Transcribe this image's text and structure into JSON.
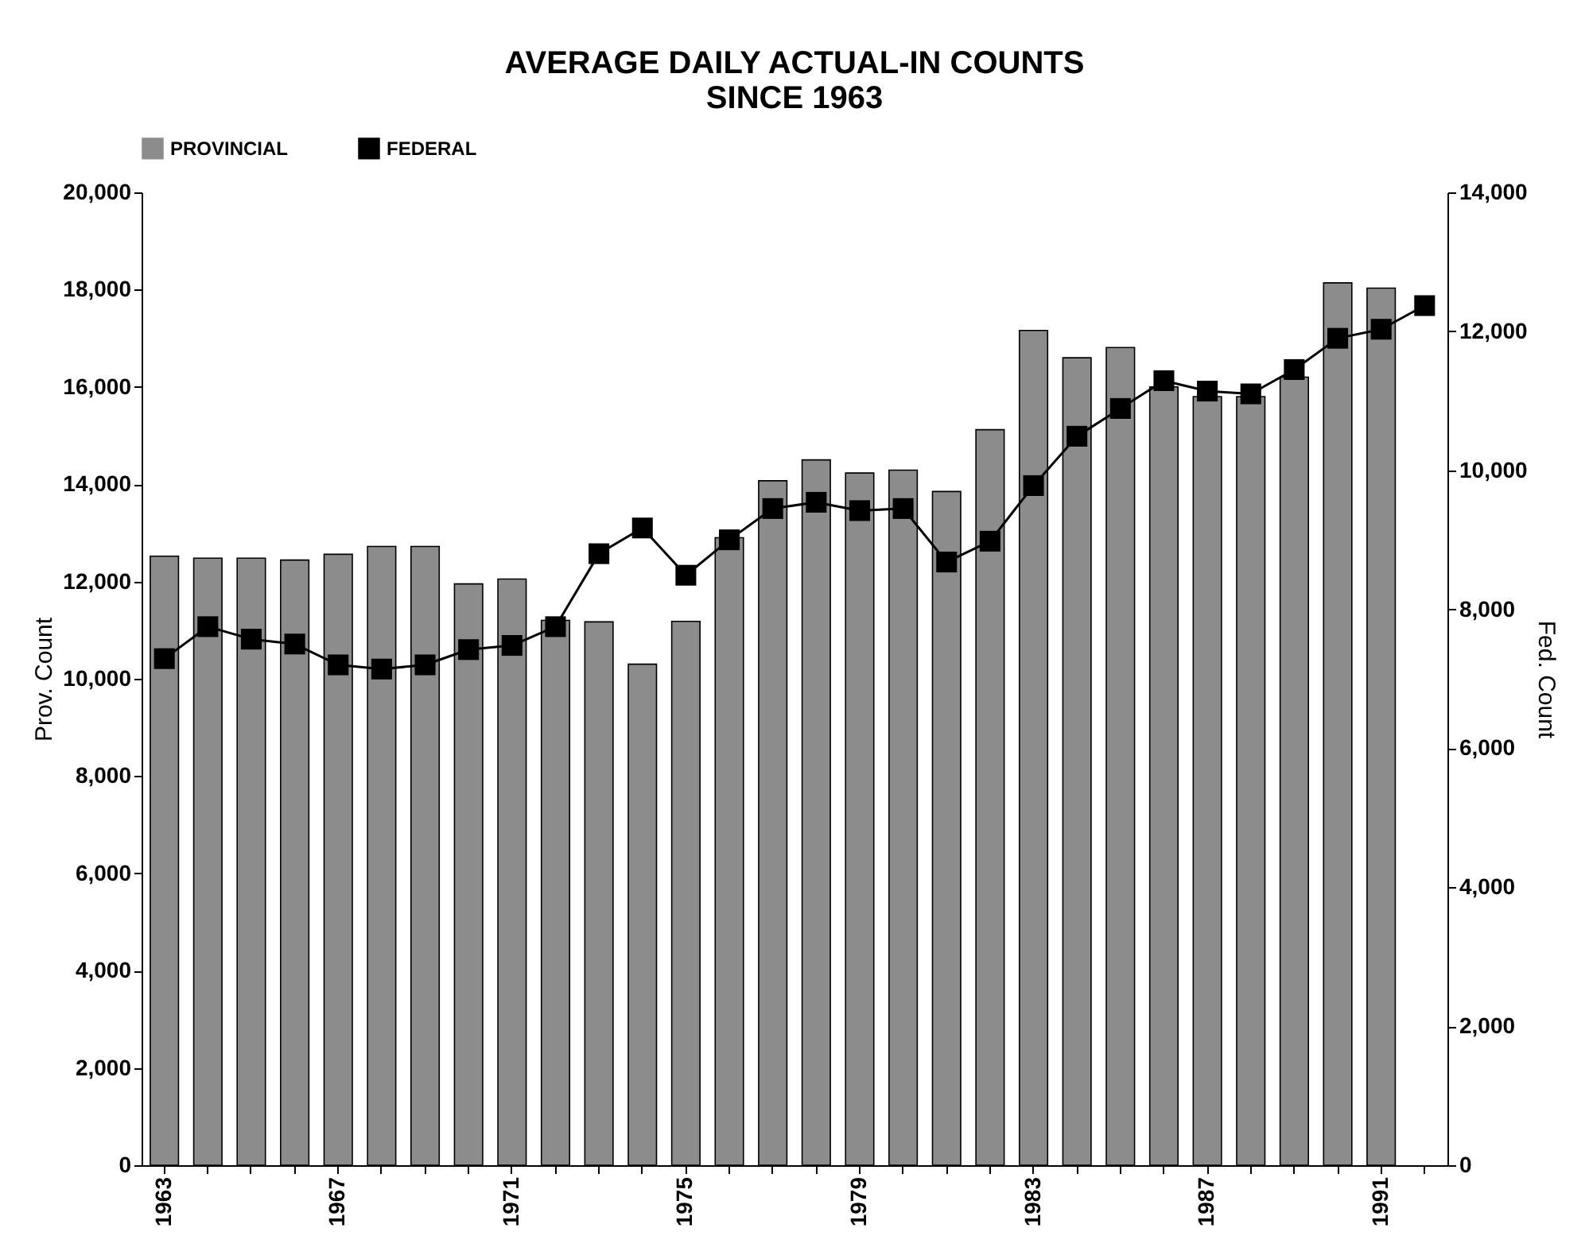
{
  "chart_data": {
    "type": "bar",
    "title": "AVERAGE DAILY ACTUAL-IN COUNTS\nSINCE 1963",
    "categories": [
      "1963",
      null,
      null,
      null,
      "1967",
      null,
      null,
      null,
      "1971",
      null,
      null,
      null,
      "1975",
      null,
      null,
      null,
      "1979",
      null,
      null,
      null,
      "1983",
      null,
      null,
      null,
      "1987",
      null,
      null,
      null,
      "1991",
      null
    ],
    "series": [
      {
        "name": "PROVINCIAL",
        "color": "#8c8c8c",
        "values": [
          12520,
          12480,
          12480,
          12440,
          12560,
          12720,
          12720,
          11950,
          12050,
          11200,
          11170,
          10300,
          11180,
          12900,
          14070,
          14500,
          14230,
          14290,
          13850,
          15120,
          17160,
          16600,
          16810,
          16000,
          15800,
          15800,
          16200,
          18140,
          18030,
          null
        ]
      },
      {
        "name": "FEDERAL",
        "type": "line",
        "axis": "y2",
        "color": "#000000",
        "values": [
          7290,
          7750,
          7570,
          7500,
          7200,
          7140,
          7200,
          7420,
          7480,
          7750,
          8800,
          9170,
          8490,
          9000,
          9450,
          9540,
          9420,
          9450,
          8680,
          8980,
          9780,
          10490,
          10890,
          11290,
          11140,
          11100,
          11450,
          11900,
          12030,
          12370
        ]
      }
    ],
    "ylabel": "Prov. Count",
    "y2label": "Fed. Count",
    "ylim": [
      0,
      20000
    ],
    "yticks": [
      {
        "value": 0,
        "label": "0"
      },
      {
        "value": 2000,
        "label": "2,000"
      },
      {
        "value": 4000,
        "label": "4,000"
      },
      {
        "value": 6000,
        "label": "6,000"
      },
      {
        "value": 8000,
        "label": "8,000"
      },
      {
        "value": 10000,
        "label": "10,000"
      },
      {
        "value": 12000,
        "label": "12,000"
      },
      {
        "value": 14000,
        "label": "14,000"
      },
      {
        "value": 16000,
        "label": "16,000"
      },
      {
        "value": 18000,
        "label": "18,000"
      },
      {
        "value": 20000,
        "label": "20,000"
      }
    ],
    "y2lim": [
      0,
      14000
    ],
    "y2ticks": [
      {
        "value": 0,
        "label": "0"
      },
      {
        "value": 2000,
        "label": "2,000"
      },
      {
        "value": 4000,
        "label": "4,000"
      },
      {
        "value": 6000,
        "label": "6,000"
      },
      {
        "value": 8000,
        "label": "8,000"
      },
      {
        "value": 10000,
        "label": "10,000"
      },
      {
        "value": 12000,
        "label": "12,000"
      },
      {
        "value": 14000,
        "label": "14,000"
      }
    ],
    "legend": "top",
    "marker": "square",
    "line_style": "solid",
    "grid": false
  }
}
